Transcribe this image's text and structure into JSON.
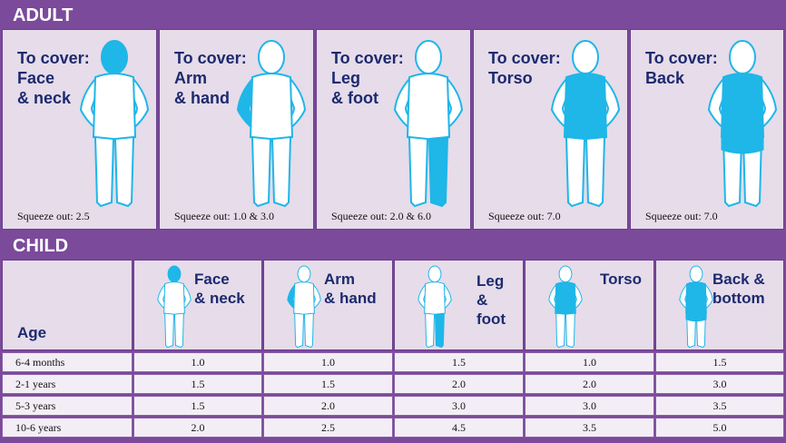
{
  "sections": {
    "adult": "ADULT",
    "child": "CHILD"
  },
  "adult": [
    {
      "title": "To cover: Face & neck",
      "l1": "To cover:",
      "l2": "Face",
      "l3": "& neck",
      "squeeze": "Squeeze out: 2.5",
      "area": "head"
    },
    {
      "title": "To cover: Arm & hand",
      "l1": "To cover:",
      "l2": "Arm",
      "l3": "& hand",
      "squeeze": "Squeeze out: 1.0 & 3.0",
      "area": "arm"
    },
    {
      "title": "To cover: Leg & foot",
      "l1": "To cover:",
      "l2": "Leg",
      "l3": "& foot",
      "squeeze": "Squeeze out: 2.0 & 6.0",
      "area": "leg"
    },
    {
      "title": "To cover: Torso",
      "l1": "To cover:",
      "l2": "Torso",
      "l3": "",
      "squeeze": "Squeeze out: 7.0",
      "area": "torso"
    },
    {
      "title": "To cover: Back",
      "l1": "To cover:",
      "l2": "Back",
      "l3": "",
      "squeeze": "Squeeze out: 7.0",
      "area": "back"
    }
  ],
  "child": {
    "age_header": "Age",
    "columns": [
      {
        "l1": "Face",
        "l2": "& neck",
        "l3": "",
        "area": "head"
      },
      {
        "l1": "Arm",
        "l2": "& hand",
        "l3": "",
        "area": "arm"
      },
      {
        "l1": "Leg",
        "l2": "&",
        "l3": "foot",
        "area": "leg"
      },
      {
        "l1": "Torso",
        "l2": "",
        "l3": "",
        "area": "torso"
      },
      {
        "l1": "Back &",
        "l2": "bottom",
        "l3": "",
        "area": "back"
      }
    ],
    "rows": [
      {
        "age": "6-4 months",
        "values": [
          "1.0",
          "1.0",
          "1.5",
          "1.0",
          "1.5"
        ]
      },
      {
        "age": "2-1 years",
        "values": [
          "1.5",
          "1.5",
          "2.0",
          "2.0",
          "3.0"
        ]
      },
      {
        "age": "5-3 years",
        "values": [
          "1.5",
          "2.0",
          "3.0",
          "3.0",
          "3.5"
        ]
      },
      {
        "age": "10-6 years",
        "values": [
          "2.0",
          "2.5",
          "4.5",
          "3.5",
          "5.0"
        ]
      }
    ]
  },
  "colors": {
    "band": "#7b4a9a",
    "cell": "#e6dcea",
    "highlight": "#1fb6e8",
    "text": "#1d2a6e"
  }
}
